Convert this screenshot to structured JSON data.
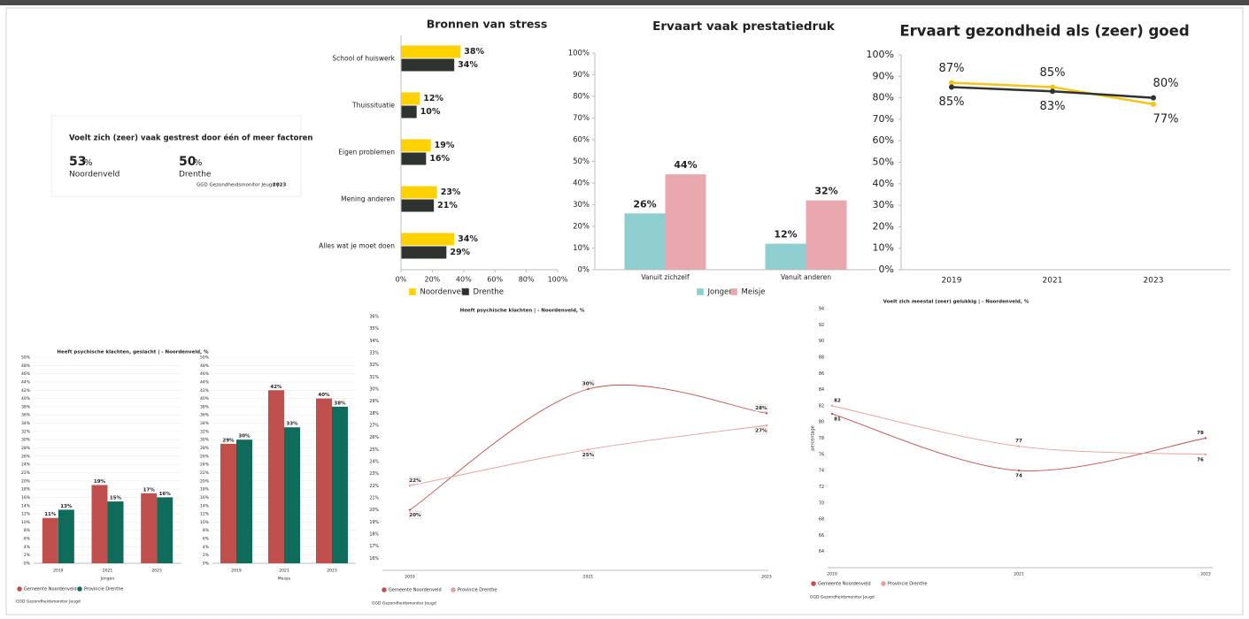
{
  "kpi": {
    "title": "Voelt zich (zeer) vaak gestrest door één of meer factoren",
    "items": [
      {
        "value": 53,
        "unit": "%",
        "label": "Noordenveld"
      },
      {
        "value": 50,
        "unit": "%",
        "label": "Drenthe"
      }
    ],
    "source": "GGD Gezondheidsmonitor Jeugd |",
    "source_year": "2023"
  },
  "chart_data": [
    {
      "type": "bar",
      "orientation": "horizontal",
      "title": "Bronnen van stress",
      "categories": [
        "School of huiswerk",
        "Thuissituatie",
        "Eigen problemen",
        "Mening anderen",
        "Alles wat je moet doen"
      ],
      "series": [
        {
          "name": "Noordenveld",
          "color": "#ffd200",
          "values": [
            38,
            12,
            19,
            23,
            34
          ],
          "value_labels": [
            "38%",
            "12%",
            "19%",
            "23%",
            "34%"
          ]
        },
        {
          "name": "Drenthe",
          "color": "#2f332f",
          "values": [
            34,
            10,
            16,
            21,
            29
          ],
          "value_labels": [
            "34%",
            "10%",
            "16%",
            "21%",
            "29%"
          ]
        }
      ],
      "xlim": [
        0,
        100
      ],
      "xticks": [
        {
          "value": 0,
          "label": "0%"
        },
        {
          "value": 20,
          "label": "20%"
        },
        {
          "value": 40,
          "label": "40%"
        },
        {
          "value": 60,
          "label": "60%"
        },
        {
          "value": 80,
          "label": "80%"
        },
        {
          "value": 100,
          "label": "100%"
        }
      ]
    },
    {
      "type": "bar",
      "title": "Ervaart vaak prestatiedruk",
      "categories": [
        "Vanuit zichzelf",
        "Vanuit anderen"
      ],
      "series": [
        {
          "name": "Jongen",
          "color": "#8fcfcf",
          "values": [
            26,
            12
          ],
          "value_labels": [
            "26%",
            "12%"
          ]
        },
        {
          "name": "Meisje",
          "color": "#e9a8ae",
          "values": [
            44,
            32
          ],
          "value_labels": [
            "44%",
            "32%"
          ]
        }
      ],
      "ylim": [
        0,
        100
      ],
      "yticks": [
        {
          "value": 0,
          "label": "0%"
        },
        {
          "value": 10,
          "label": "10%"
        },
        {
          "value": 20,
          "label": "20%"
        },
        {
          "value": 30,
          "label": "30%"
        },
        {
          "value": 40,
          "label": "40%"
        },
        {
          "value": 50,
          "label": "50%"
        },
        {
          "value": 60,
          "label": "60%"
        },
        {
          "value": 70,
          "label": "70%"
        },
        {
          "value": 80,
          "label": "80%"
        },
        {
          "value": 90,
          "label": "90%"
        },
        {
          "value": 100,
          "label": "100%"
        }
      ]
    },
    {
      "type": "line",
      "title": "Ervaart gezondheid als (zeer) goed",
      "categories": [
        "2019",
        "2021",
        "2023"
      ],
      "series": [
        {
          "color": "#f5c518",
          "values": [
            87,
            85,
            77
          ],
          "value_labels": [
            "87%",
            "85%",
            "77%"
          ]
        },
        {
          "color": "#2f332f",
          "values": [
            85,
            83,
            80
          ],
          "value_labels": [
            "85%",
            "83%",
            "80%"
          ]
        }
      ],
      "ylim": [
        0,
        100
      ],
      "yticks": [
        {
          "value": 0,
          "label": "0%"
        },
        {
          "value": 10,
          "label": "10%"
        },
        {
          "value": 20,
          "label": "20%"
        },
        {
          "value": 30,
          "label": "30%"
        },
        {
          "value": 40,
          "label": "40%"
        },
        {
          "value": 50,
          "label": "50%"
        },
        {
          "value": 60,
          "label": "60%"
        },
        {
          "value": 70,
          "label": "70%"
        },
        {
          "value": 80,
          "label": "80%"
        },
        {
          "value": 90,
          "label": "90%"
        },
        {
          "value": 100,
          "label": "100%"
        }
      ]
    },
    {
      "type": "panel-bar",
      "title": "Heeft psychische klachten, geslacht | - Noordenveld, %",
      "panels": [
        "Jongen",
        "Meisje"
      ],
      "categories": [
        "2019",
        "2021",
        "2023"
      ],
      "series": [
        {
          "name": "Gemeente Noordenveld",
          "color": "#c0504d",
          "values": [
            [
              11,
              19,
              17
            ],
            [
              29,
              42,
              40
            ]
          ],
          "value_labels": [
            [
              "11%",
              "19%",
              "17%"
            ],
            [
              "29%",
              "42%",
              "40%"
            ]
          ]
        },
        {
          "name": "Provincie Drenthe",
          "color": "#0f6b5a",
          "values": [
            [
              13,
              15,
              16
            ],
            [
              30,
              33,
              38
            ]
          ],
          "value_labels": [
            [
              "13%",
              "15%",
              "16%"
            ],
            [
              "30%",
              "33%",
              "38%"
            ]
          ]
        }
      ],
      "ylim": [
        0,
        50
      ],
      "yticks": [
        {
          "value": 0,
          "label": "0%"
        },
        {
          "value": 2,
          "label": "2%"
        },
        {
          "value": 4,
          "label": "4%"
        },
        {
          "value": 6,
          "label": "6%"
        },
        {
          "value": 8,
          "label": "8%"
        },
        {
          "value": 10,
          "label": "10%"
        },
        {
          "value": 12,
          "label": "12%"
        },
        {
          "value": 14,
          "label": "14%"
        },
        {
          "value": 16,
          "label": "16%"
        },
        {
          "value": 18,
          "label": "18%"
        },
        {
          "value": 20,
          "label": "20%"
        },
        {
          "value": 22,
          "label": "22%"
        },
        {
          "value": 24,
          "label": "24%"
        },
        {
          "value": 26,
          "label": "26%"
        },
        {
          "value": 28,
          "label": "28%"
        },
        {
          "value": 30,
          "label": "30%"
        },
        {
          "value": 32,
          "label": "32%"
        },
        {
          "value": 34,
          "label": "34%"
        },
        {
          "value": 36,
          "label": "36%"
        },
        {
          "value": 38,
          "label": "38%"
        },
        {
          "value": 40,
          "label": "40%"
        },
        {
          "value": 42,
          "label": "42%"
        },
        {
          "value": 44,
          "label": "44%"
        },
        {
          "value": 46,
          "label": "46%"
        },
        {
          "value": 48,
          "label": "48%"
        },
        {
          "value": 50,
          "label": "50%"
        }
      ],
      "grid": true,
      "source": "GGD Gezondheidsmonitor Jeugd"
    },
    {
      "type": "line",
      "smooth": true,
      "title": "Heeft psychische klachten | - Noordenveld, %",
      "categories": [
        "2019",
        "2021",
        "2023"
      ],
      "series": [
        {
          "name": "Gemeente Noordenveld",
          "color": "#c0504d",
          "values": [
            20,
            30,
            28
          ],
          "value_labels": [
            "20%",
            "30%",
            "28%"
          ]
        },
        {
          "name": "Provincie Drenthe",
          "color": "#e8a09a",
          "values": [
            22,
            25,
            27
          ],
          "value_labels": [
            "22%",
            "25%",
            "27%"
          ]
        }
      ],
      "ylim": [
        15,
        36
      ],
      "yticks": [
        {
          "value": 16,
          "label": "16%"
        },
        {
          "value": 17,
          "label": "17%"
        },
        {
          "value": 18,
          "label": "18%"
        },
        {
          "value": 19,
          "label": "19%"
        },
        {
          "value": 20,
          "label": "20%"
        },
        {
          "value": 21,
          "label": "21%"
        },
        {
          "value": 22,
          "label": "22%"
        },
        {
          "value": 23,
          "label": "23%"
        },
        {
          "value": 24,
          "label": "24%"
        },
        {
          "value": 25,
          "label": "25%"
        },
        {
          "value": 26,
          "label": "26%"
        },
        {
          "value": 27,
          "label": "27%"
        },
        {
          "value": 28,
          "label": "28%"
        },
        {
          "value": 29,
          "label": "29%"
        },
        {
          "value": 30,
          "label": "30%"
        },
        {
          "value": 31,
          "label": "31%"
        },
        {
          "value": 32,
          "label": "32%"
        },
        {
          "value": 33,
          "label": "33%"
        },
        {
          "value": 34,
          "label": "34%"
        },
        {
          "value": 35,
          "label": "35%"
        },
        {
          "value": 36,
          "label": "36%"
        }
      ],
      "source": "GGD Gezondheidsmonitor Jeugd"
    },
    {
      "type": "line",
      "smooth": true,
      "title": "Voelt zich meestal (zeer) gelukkig | - Noordenveld, %",
      "ylabel": "percentage",
      "categories": [
        "2019",
        "2021",
        "2023"
      ],
      "series": [
        {
          "name": "Gemeente Noordenveld",
          "color": "#c0504d",
          "values": [
            81,
            74,
            78
          ]
        },
        {
          "name": "Provincie Drenthe",
          "color": "#e8a09a",
          "values": [
            82,
            77,
            76
          ]
        }
      ],
      "ylim": [
        62,
        94
      ],
      "yticks": [
        64,
        66,
        68,
        70,
        72,
        74,
        76,
        78,
        80,
        82,
        84,
        86,
        88,
        90,
        92,
        94
      ],
      "source": "GGD Gezondheidsmonitor Jeugd"
    }
  ]
}
